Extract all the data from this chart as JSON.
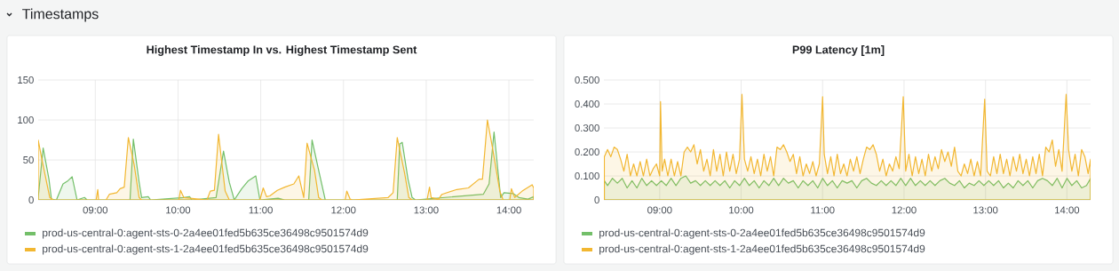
{
  "chart_data": [
    {
      "type": "area",
      "title": "Highest Timestamp In vs. Highest Timestamp Sent",
      "annotations": [
        "Timestamps"
      ],
      "xlim": [
        8.31,
        14.3
      ],
      "xticks": [
        {
          "value": 9,
          "label": "09:00"
        },
        {
          "value": 10,
          "label": "10:00"
        },
        {
          "value": 11,
          "label": "11:00"
        },
        {
          "value": 12,
          "label": "12:00"
        },
        {
          "value": 13,
          "label": "13:00"
        },
        {
          "value": 14,
          "label": "14:00"
        }
      ],
      "ylim": [
        0,
        150
      ],
      "yticks": [
        0,
        50,
        100,
        150
      ],
      "grid": true,
      "legend": "bottom",
      "series": [
        {
          "name": "prod-us-central-0:agent-sts-0-2a4ee01fed5b635ce36498c9501574d9",
          "color": "#73bf69",
          "x": [
            8.31,
            8.37,
            8.44,
            8.47,
            8.53,
            8.61,
            8.67,
            8.72,
            8.78,
            8.87,
            8.9,
            9.42,
            9.46,
            9.53,
            9.56,
            9.64,
            9.67,
            10.07,
            10.14,
            10.17,
            10.46,
            10.55,
            10.62,
            10.68,
            10.77,
            10.85,
            10.94,
            10.99,
            11.21,
            11.29,
            11.58,
            11.62,
            11.7,
            11.78,
            12.65,
            12.68,
            12.71,
            12.78,
            12.83,
            12.87,
            13.69,
            13.76,
            13.82,
            13.9,
            13.94,
            14.05,
            14.12,
            14.23,
            14.3
          ],
          "values": [
            3,
            65,
            26,
            1,
            0,
            20,
            24,
            29,
            0,
            3,
            0,
            0,
            76,
            22,
            3,
            4,
            0,
            3,
            4,
            0,
            3,
            61,
            22,
            0,
            14,
            24,
            30,
            0,
            2,
            0,
            0,
            75,
            37,
            0,
            0,
            70,
            72,
            26,
            3,
            0,
            7,
            20,
            85,
            3,
            9,
            8,
            3,
            1,
            4
          ]
        },
        {
          "name": "prod-us-central-0:agent-sts-1-2a4ee01fed5b635ce36498c9501574d9",
          "color": "#f2b731",
          "x": [
            8.31,
            8.36,
            8.45,
            8.49,
            9.01,
            9.03,
            9.04,
            9.13,
            9.17,
            9.26,
            9.3,
            9.35,
            9.4,
            9.47,
            9.53,
            9.56,
            10.01,
            10.03,
            10.07,
            10.35,
            10.39,
            10.44,
            10.49,
            10.52,
            10.57,
            10.62,
            10.99,
            11.03,
            11.07,
            11.11,
            11.2,
            11.29,
            11.4,
            11.46,
            11.52,
            11.56,
            11.65,
            11.7,
            11.74,
            12.02,
            12.04,
            12.08,
            12.11,
            12.54,
            12.6,
            12.65,
            12.74,
            12.79,
            12.83,
            13.01,
            13.04,
            13.06,
            13.15,
            13.19,
            13.37,
            13.51,
            13.64,
            13.68,
            13.74,
            13.8,
            13.89,
            13.93,
            14.01,
            14.03,
            14.07,
            14.16,
            14.28,
            14.3
          ],
          "values": [
            75,
            48,
            3,
            0,
            0,
            13,
            0,
            0,
            7,
            9,
            14,
            16,
            78,
            44,
            3,
            0,
            0,
            12,
            3,
            0,
            11,
            12,
            82,
            55,
            11,
            0,
            0,
            15,
            4,
            5,
            12,
            16,
            20,
            30,
            3,
            71,
            37,
            3,
            0,
            0,
            11,
            1,
            0,
            3,
            9,
            78,
            33,
            3,
            0,
            0,
            16,
            3,
            1,
            7,
            13,
            15,
            26,
            26,
            100,
            66,
            11,
            0,
            0,
            14,
            3,
            11,
            19,
            15
          ]
        }
      ]
    },
    {
      "type": "area",
      "title": "P99 Latency [1m]",
      "xlim": [
        8.315,
        14.29
      ],
      "xticks": [
        {
          "value": 9,
          "label": "09:00"
        },
        {
          "value": 10,
          "label": "10:00"
        },
        {
          "value": 11,
          "label": "11:00"
        },
        {
          "value": 12,
          "label": "12:00"
        },
        {
          "value": 13,
          "label": "13:00"
        },
        {
          "value": 14,
          "label": "14:00"
        }
      ],
      "ylim": [
        0,
        0.5
      ],
      "yticks": [
        0,
        {
          "value": 0.1,
          "label": "0.100"
        },
        {
          "value": 0.2,
          "label": "0.200"
        },
        {
          "value": 0.3,
          "label": "0.300"
        },
        {
          "value": 0.4,
          "label": "0.400"
        },
        {
          "value": 0.5,
          "label": "0.500"
        }
      ],
      "grid": true,
      "legend": "bottom",
      "series": [
        {
          "name": "prod-us-central-0:agent-sts-0-2a4ee01fed5b635ce36498c9501574d9",
          "color": "#73bf69",
          "x": [
            8.32,
            8.36,
            8.42,
            8.48,
            8.54,
            8.6,
            8.66,
            8.72,
            8.78,
            8.84,
            8.9,
            8.96,
            9.02,
            9.08,
            9.14,
            9.2,
            9.26,
            9.32,
            9.38,
            9.44,
            9.5,
            9.56,
            9.62,
            9.68,
            9.74,
            9.8,
            9.86,
            9.92,
            9.98,
            10.04,
            10.1,
            10.16,
            10.22,
            10.28,
            10.34,
            10.4,
            10.46,
            10.52,
            10.58,
            10.64,
            10.7,
            10.76,
            10.82,
            10.88,
            10.94,
            11.0,
            11.06,
            11.12,
            11.18,
            11.24,
            11.3,
            11.36,
            11.42,
            11.48,
            11.54,
            11.6,
            11.66,
            11.72,
            11.78,
            11.84,
            11.9,
            11.96,
            12.02,
            12.08,
            12.14,
            12.2,
            12.26,
            12.32,
            12.38,
            12.44,
            12.5,
            12.56,
            12.62,
            12.68,
            12.74,
            12.8,
            12.86,
            12.92,
            12.98,
            13.04,
            13.1,
            13.16,
            13.22,
            13.28,
            13.34,
            13.4,
            13.46,
            13.52,
            13.58,
            13.64,
            13.7,
            13.76,
            13.82,
            13.88,
            13.94,
            14.0,
            14.06,
            14.12,
            14.18,
            14.24,
            14.29
          ],
          "values": [
            0.08,
            0.06,
            0.09,
            0.07,
            0.09,
            0.05,
            0.08,
            0.05,
            0.09,
            0.06,
            0.08,
            0.06,
            0.08,
            0.06,
            0.09,
            0.06,
            0.09,
            0.1,
            0.07,
            0.08,
            0.06,
            0.08,
            0.06,
            0.08,
            0.06,
            0.08,
            0.05,
            0.08,
            0.06,
            0.09,
            0.06,
            0.08,
            0.05,
            0.08,
            0.06,
            0.09,
            0.06,
            0.09,
            0.07,
            0.08,
            0.05,
            0.08,
            0.06,
            0.08,
            0.05,
            0.09,
            0.06,
            0.08,
            0.05,
            0.08,
            0.07,
            0.08,
            0.05,
            0.08,
            0.09,
            0.07,
            0.06,
            0.08,
            0.06,
            0.08,
            0.06,
            0.09,
            0.06,
            0.09,
            0.06,
            0.08,
            0.06,
            0.08,
            0.06,
            0.08,
            0.09,
            0.07,
            0.06,
            0.08,
            0.05,
            0.07,
            0.06,
            0.08,
            0.06,
            0.08,
            0.06,
            0.08,
            0.05,
            0.07,
            0.05,
            0.08,
            0.06,
            0.08,
            0.05,
            0.08,
            0.09,
            0.08,
            0.06,
            0.09,
            0.05,
            0.09,
            0.06,
            0.08,
            0.05,
            0.06,
            0.09
          ]
        },
        {
          "name": "prod-us-central-0:agent-sts-1-2a4ee01fed5b635ce36498c9501574d9",
          "color": "#f2b731",
          "x": [
            8.32,
            8.36,
            8.4,
            8.44,
            8.48,
            8.52,
            8.56,
            8.6,
            8.64,
            8.68,
            8.72,
            8.76,
            8.8,
            8.84,
            8.88,
            8.92,
            8.96,
            9.0,
            9.01,
            9.03,
            9.06,
            9.1,
            9.14,
            9.18,
            9.22,
            9.26,
            9.3,
            9.34,
            9.38,
            9.42,
            9.46,
            9.5,
            9.54,
            9.58,
            9.62,
            9.66,
            9.7,
            9.74,
            9.78,
            9.82,
            9.86,
            9.9,
            9.94,
            9.98,
            10.01,
            10.04,
            10.08,
            10.12,
            10.16,
            10.2,
            10.24,
            10.28,
            10.32,
            10.36,
            10.4,
            10.44,
            10.48,
            10.52,
            10.56,
            10.6,
            10.64,
            10.68,
            10.72,
            10.76,
            10.8,
            10.84,
            10.88,
            10.92,
            10.96,
            11.0,
            11.02,
            11.06,
            11.1,
            11.14,
            11.18,
            11.22,
            11.26,
            11.3,
            11.34,
            11.38,
            11.42,
            11.46,
            11.5,
            11.54,
            11.58,
            11.62,
            11.66,
            11.7,
            11.74,
            11.78,
            11.82,
            11.86,
            11.9,
            11.94,
            11.99,
            12.02,
            12.06,
            12.1,
            12.14,
            12.18,
            12.22,
            12.26,
            12.3,
            12.34,
            12.38,
            12.42,
            12.46,
            12.5,
            12.54,
            12.58,
            12.62,
            12.66,
            12.7,
            12.74,
            12.78,
            12.82,
            12.86,
            12.9,
            12.94,
            12.99,
            13.02,
            13.06,
            13.1,
            13.14,
            13.18,
            13.22,
            13.26,
            13.3,
            13.34,
            13.38,
            13.42,
            13.46,
            13.5,
            13.54,
            13.58,
            13.62,
            13.66,
            13.7,
            13.74,
            13.78,
            13.82,
            13.86,
            13.9,
            13.94,
            13.99,
            14.02,
            14.06,
            14.1,
            14.14,
            14.18,
            14.22,
            14.26,
            14.29
          ],
          "values": [
            0.18,
            0.21,
            0.18,
            0.22,
            0.21,
            0.17,
            0.12,
            0.19,
            0.1,
            0.15,
            0.1,
            0.16,
            0.1,
            0.17,
            0.1,
            0.13,
            0.15,
            0.1,
            0.41,
            0.12,
            0.17,
            0.1,
            0.17,
            0.1,
            0.16,
            0.1,
            0.2,
            0.22,
            0.2,
            0.23,
            0.15,
            0.21,
            0.12,
            0.17,
            0.1,
            0.21,
            0.12,
            0.19,
            0.1,
            0.2,
            0.12,
            0.19,
            0.11,
            0.17,
            0.44,
            0.17,
            0.12,
            0.18,
            0.11,
            0.17,
            0.1,
            0.19,
            0.12,
            0.18,
            0.1,
            0.22,
            0.21,
            0.23,
            0.2,
            0.16,
            0.19,
            0.11,
            0.18,
            0.1,
            0.15,
            0.11,
            0.16,
            0.1,
            0.15,
            0.43,
            0.19,
            0.11,
            0.18,
            0.1,
            0.19,
            0.11,
            0.15,
            0.1,
            0.17,
            0.12,
            0.18,
            0.11,
            0.17,
            0.22,
            0.21,
            0.23,
            0.19,
            0.12,
            0.17,
            0.1,
            0.15,
            0.12,
            0.18,
            0.13,
            0.43,
            0.12,
            0.19,
            0.1,
            0.18,
            0.11,
            0.17,
            0.1,
            0.19,
            0.12,
            0.18,
            0.13,
            0.21,
            0.16,
            0.2,
            0.14,
            0.22,
            0.12,
            0.1,
            0.15,
            0.11,
            0.17,
            0.1,
            0.16,
            0.1,
            0.42,
            0.12,
            0.1,
            0.18,
            0.11,
            0.19,
            0.11,
            0.17,
            0.1,
            0.18,
            0.12,
            0.19,
            0.11,
            0.17,
            0.1,
            0.18,
            0.11,
            0.19,
            0.1,
            0.22,
            0.2,
            0.25,
            0.14,
            0.21,
            0.12,
            0.44,
            0.21,
            0.12,
            0.19,
            0.1,
            0.21,
            0.18,
            0.11,
            0.17
          ]
        }
      ]
    }
  ]
}
